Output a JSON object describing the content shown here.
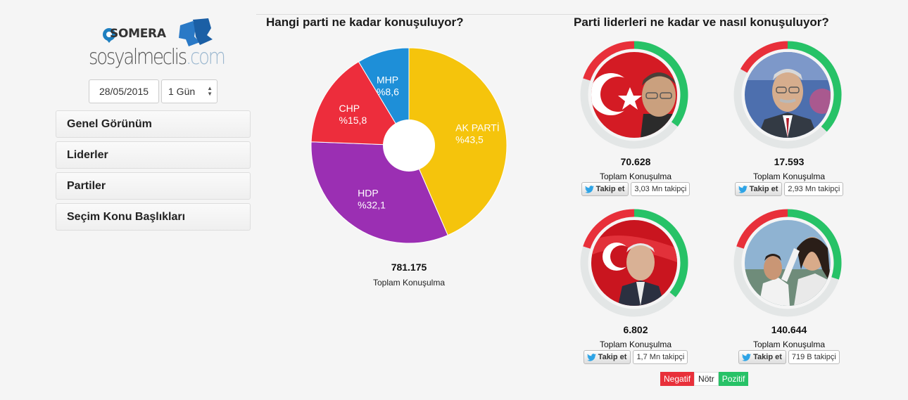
{
  "brand": {
    "somera": "SOMERA",
    "sosyal": "sosyalmeclis",
    "com": ".com"
  },
  "filters": {
    "date": "28/05/2015",
    "period": "1 Gün"
  },
  "nav": [
    "Genel Görünüm",
    "Liderler",
    "Partiler",
    "Seçim Konu Başlıkları"
  ],
  "party_section": {
    "title": "Hangi parti ne kadar konuşuluyor?",
    "total": "781.175",
    "total_label": "Toplam Konuşulma"
  },
  "leaders_section": {
    "title": "Parti liderleri ne kadar ve nasıl konuşuluyor?",
    "leaders": [
      {
        "count": "70.628",
        "label": "Toplam Konuşulma",
        "follow": "Takip et",
        "followers": "3,03 Mn takipçi",
        "negative": 0.2,
        "positive": 0.35
      },
      {
        "count": "17.593",
        "label": "Toplam Konuşulma",
        "follow": "Takip et",
        "followers": "2,93 Mn takipçi",
        "negative": 0.17,
        "positive": 0.37
      },
      {
        "count": "6.802",
        "label": "Toplam Konuşulma",
        "follow": "Takip et",
        "followers": "1,7 Mn takipçi",
        "negative": 0.2,
        "positive": 0.36
      },
      {
        "count": "140.644",
        "label": "Toplam Konuşulma",
        "follow": "Takip et",
        "followers": "719 B takipçi",
        "negative": 0.2,
        "positive": 0.3
      }
    ]
  },
  "legend": {
    "negative": "Negatif",
    "neutral": "Nötr",
    "positive": "Pozitif"
  },
  "colors": {
    "negative": "#e8303a",
    "positive": "#27c267",
    "neutral": "#e3e6e6"
  },
  "chart_data": {
    "type": "pie",
    "title": "Hangi parti ne kadar konuşuluyor?",
    "categories": [
      "AK PARTİ",
      "HDP",
      "CHP",
      "MHP"
    ],
    "values": [
      43.5,
      32.1,
      15.8,
      8.6
    ],
    "value_labels": [
      "%43,5",
      "%32,1",
      "%15,8",
      "%8,6"
    ],
    "colors": [
      "#f5c40c",
      "#9b2fb3",
      "#ed2d3c",
      "#1e8fd8"
    ]
  }
}
